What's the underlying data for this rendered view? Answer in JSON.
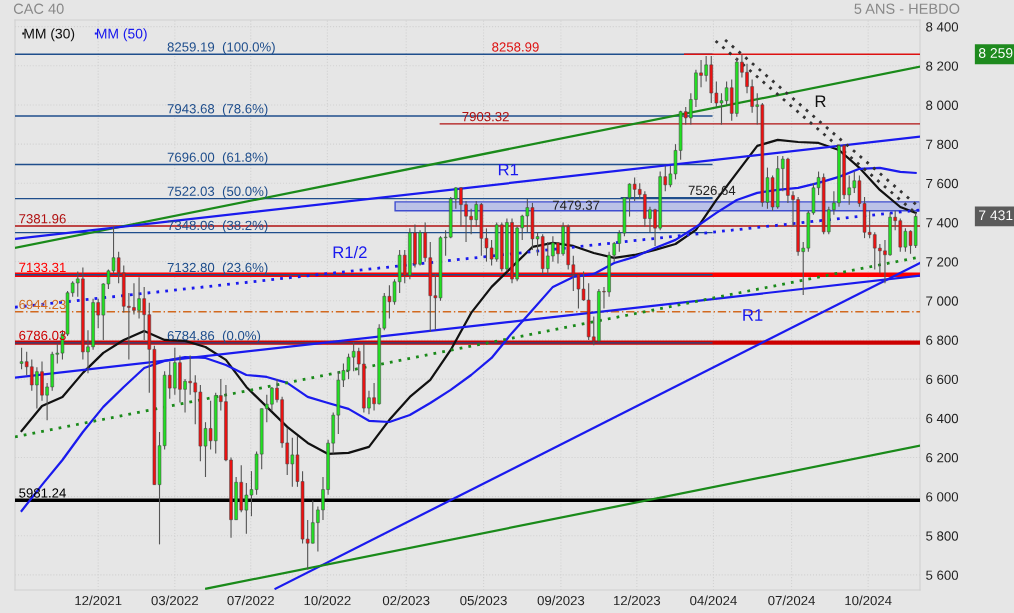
{
  "chart_data": {
    "type": "candlestick",
    "title": "CAC 40",
    "subtitle": "5 ANS - HEBDO",
    "x": [
      "2021-08-30",
      "2021-09-06",
      "2021-09-13",
      "2021-09-20",
      "2021-09-27",
      "2021-10-04",
      "2021-10-11",
      "2021-10-18",
      "2021-10-25",
      "2021-11-01",
      "2021-11-08",
      "2021-11-15",
      "2021-11-22",
      "2021-11-29",
      "2021-12-06",
      "2021-12-13",
      "2021-12-20",
      "2021-12-27",
      "2022-01-03",
      "2022-01-10",
      "2022-01-17",
      "2022-01-24",
      "2022-01-31",
      "2022-02-07",
      "2022-02-14",
      "2022-02-21",
      "2022-02-28",
      "2022-03-07",
      "2022-03-14",
      "2022-03-21",
      "2022-03-28",
      "2022-04-04",
      "2022-04-11",
      "2022-04-18",
      "2022-04-25",
      "2022-05-02",
      "2022-05-09",
      "2022-05-16",
      "2022-05-23",
      "2022-05-30",
      "2022-06-06",
      "2022-06-13",
      "2022-06-20",
      "2022-06-27",
      "2022-07-04",
      "2022-07-11",
      "2022-07-18",
      "2022-07-25",
      "2022-08-01",
      "2022-08-08",
      "2022-08-15",
      "2022-08-22",
      "2022-08-29",
      "2022-09-05",
      "2022-09-12",
      "2022-09-19",
      "2022-09-26",
      "2022-10-03",
      "2022-10-10",
      "2022-10-17",
      "2022-10-24",
      "2022-10-31",
      "2022-11-07",
      "2022-11-14",
      "2022-11-21",
      "2022-11-28",
      "2022-12-05",
      "2022-12-12",
      "2022-12-19",
      "2022-12-26",
      "2023-01-02",
      "2023-01-09",
      "2023-01-16",
      "2023-01-23",
      "2023-01-30",
      "2023-02-06",
      "2023-02-13",
      "2023-02-20",
      "2023-02-27",
      "2023-03-06",
      "2023-03-13",
      "2023-03-20",
      "2023-03-27",
      "2023-04-03",
      "2023-04-10",
      "2023-04-17",
      "2023-04-24",
      "2023-05-01",
      "2023-05-08",
      "2023-05-15",
      "2023-05-22",
      "2023-05-29",
      "2023-06-05",
      "2023-06-12",
      "2023-06-19",
      "2023-06-26",
      "2023-07-03",
      "2023-07-10",
      "2023-07-17",
      "2023-07-24",
      "2023-07-31",
      "2023-08-07",
      "2023-08-14",
      "2023-08-21",
      "2023-08-28",
      "2023-09-04",
      "2023-09-11",
      "2023-09-18",
      "2023-09-25",
      "2023-10-02",
      "2023-10-09",
      "2023-10-16",
      "2023-10-23",
      "2023-10-30",
      "2023-11-06",
      "2023-11-13",
      "2023-11-20",
      "2023-11-27",
      "2023-12-04",
      "2023-12-11",
      "2023-12-18",
      "2023-12-25",
      "2024-01-01",
      "2024-01-08",
      "2024-01-15",
      "2024-01-22",
      "2024-01-29",
      "2024-02-05",
      "2024-02-12",
      "2024-02-19",
      "2024-02-26",
      "2024-03-04",
      "2024-03-11",
      "2024-03-18",
      "2024-03-25",
      "2024-04-01",
      "2024-04-08",
      "2024-04-15",
      "2024-04-22",
      "2024-04-29",
      "2024-05-06",
      "2024-05-13",
      "2024-05-20",
      "2024-05-27",
      "2024-06-03",
      "2024-06-10",
      "2024-06-17",
      "2024-06-24",
      "2024-07-01",
      "2024-07-08",
      "2024-07-15",
      "2024-07-22",
      "2024-07-29",
      "2024-08-05",
      "2024-08-12",
      "2024-08-19",
      "2024-08-26",
      "2024-09-02",
      "2024-09-09",
      "2024-09-16",
      "2024-09-23",
      "2024-09-30",
      "2024-10-07",
      "2024-10-14",
      "2024-10-21",
      "2024-10-28",
      "2024-11-04",
      "2024-11-11",
      "2024-11-18",
      "2024-11-25",
      "2024-12-02",
      "2024-12-09",
      "2024-12-16",
      "2024-12-23",
      "2024-12-30",
      "2025-01-06"
    ],
    "ohlc": [
      [
        6680,
        6760,
        6650,
        6689
      ],
      [
        6689,
        6740,
        6620,
        6663
      ],
      [
        6663,
        6700,
        6540,
        6570
      ],
      [
        6570,
        6660,
        6450,
        6638
      ],
      [
        6638,
        6690,
        6490,
        6518
      ],
      [
        6518,
        6580,
        6390,
        6560
      ],
      [
        6560,
        6740,
        6540,
        6727
      ],
      [
        6727,
        6780,
        6680,
        6733
      ],
      [
        6733,
        6850,
        6700,
        6830
      ],
      [
        6830,
        7050,
        6820,
        7041
      ],
      [
        7041,
        7100,
        7020,
        7091
      ],
      [
        7091,
        7150,
        7020,
        7112
      ],
      [
        7112,
        7170,
        6700,
        6739
      ],
      [
        6739,
        6850,
        6630,
        6765
      ],
      [
        6765,
        7010,
        6750,
        6991
      ],
      [
        6991,
        7010,
        6860,
        6927
      ],
      [
        6927,
        7090,
        6800,
        7086
      ],
      [
        7086,
        7160,
        7060,
        7153
      ],
      [
        7153,
        7380,
        7140,
        7220
      ],
      [
        7220,
        7250,
        7090,
        7143
      ],
      [
        7143,
        7180,
        6940,
        6972
      ],
      [
        6972,
        7040,
        6700,
        6966
      ],
      [
        6966,
        7090,
        6930,
        6951
      ],
      [
        6951,
        7120,
        6910,
        7011
      ],
      [
        7011,
        7070,
        6800,
        6929
      ],
      [
        6929,
        6990,
        6530,
        6752
      ],
      [
        6752,
        6770,
        6060,
        6061
      ],
      [
        6061,
        6330,
        5756,
        6260
      ],
      [
        6260,
        6640,
        6240,
        6620
      ],
      [
        6620,
        6690,
        6500,
        6554
      ],
      [
        6554,
        6760,
        6520,
        6684
      ],
      [
        6684,
        6720,
        6480,
        6548
      ],
      [
        6548,
        6600,
        6430,
        6589
      ],
      [
        6589,
        6720,
        6520,
        6581
      ],
      [
        6581,
        6620,
        6370,
        6534
      ],
      [
        6534,
        6570,
        6180,
        6258
      ],
      [
        6258,
        6380,
        6100,
        6348
      ],
      [
        6348,
        6490,
        6240,
        6285
      ],
      [
        6285,
        6530,
        6220,
        6516
      ],
      [
        6516,
        6600,
        6440,
        6485
      ],
      [
        6485,
        6570,
        6180,
        6187
      ],
      [
        6187,
        6200,
        5790,
        5882
      ],
      [
        5882,
        6100,
        5880,
        6073
      ],
      [
        6073,
        6160,
        5920,
        5931
      ],
      [
        5931,
        6070,
        5810,
        6008
      ],
      [
        6008,
        6130,
        5900,
        6036
      ],
      [
        6036,
        6230,
        6010,
        6217
      ],
      [
        6217,
        6450,
        6140,
        6449
      ],
      [
        6449,
        6520,
        6380,
        6472
      ],
      [
        6472,
        6560,
        6440,
        6554
      ],
      [
        6554,
        6600,
        6480,
        6495
      ],
      [
        6495,
        6510,
        6250,
        6274
      ],
      [
        6274,
        6350,
        6110,
        6167
      ],
      [
        6167,
        6300,
        6050,
        6213
      ],
      [
        6213,
        6310,
        6050,
        6077
      ],
      [
        6077,
        6130,
        5760,
        5783
      ],
      [
        5783,
        5880,
        5628,
        5762
      ],
      [
        5762,
        5980,
        5760,
        5867
      ],
      [
        5867,
        5950,
        5720,
        5932
      ],
      [
        5932,
        6100,
        5880,
        6036
      ],
      [
        6036,
        6290,
        6010,
        6273
      ],
      [
        6273,
        6430,
        6220,
        6416
      ],
      [
        6416,
        6640,
        6320,
        6595
      ],
      [
        6595,
        6680,
        6560,
        6644
      ],
      [
        6644,
        6730,
        6600,
        6712
      ],
      [
        6712,
        6790,
        6640,
        6742
      ],
      [
        6742,
        6760,
        6620,
        6677
      ],
      [
        6677,
        6780,
        6430,
        6452
      ],
      [
        6452,
        6540,
        6420,
        6505
      ],
      [
        6505,
        6580,
        6440,
        6474
      ],
      [
        6474,
        6880,
        6470,
        6860
      ],
      [
        6860,
        7040,
        6850,
        7023
      ],
      [
        7023,
        7080,
        6910,
        6995
      ],
      [
        6995,
        7110,
        6980,
        7097
      ],
      [
        7097,
        7260,
        7040,
        7233
      ],
      [
        7233,
        7260,
        7090,
        7130
      ],
      [
        7130,
        7370,
        7110,
        7347
      ],
      [
        7347,
        7390,
        7170,
        7187
      ],
      [
        7187,
        7360,
        7180,
        7348
      ],
      [
        7348,
        7400,
        7200,
        7220
      ],
      [
        7220,
        7300,
        6840,
        7026
      ],
      [
        7026,
        7140,
        6850,
        7015
      ],
      [
        7015,
        7330,
        7000,
        7322
      ],
      [
        7322,
        7360,
        7230,
        7325
      ],
      [
        7325,
        7530,
        7320,
        7520
      ],
      [
        7520,
        7580,
        7470,
        7577
      ],
      [
        7577,
        7580,
        7380,
        7491
      ],
      [
        7491,
        7510,
        7300,
        7432
      ],
      [
        7432,
        7470,
        7340,
        7414
      ],
      [
        7414,
        7510,
        7380,
        7492
      ],
      [
        7492,
        7500,
        7230,
        7319
      ],
      [
        7319,
        7370,
        7200,
        7270
      ],
      [
        7270,
        7310,
        7180,
        7213
      ],
      [
        7213,
        7400,
        7200,
        7388
      ],
      [
        7388,
        7400,
        7150,
        7163
      ],
      [
        7163,
        7420,
        7150,
        7400
      ],
      [
        7400,
        7420,
        7090,
        7111
      ],
      [
        7111,
        7380,
        7100,
        7372
      ],
      [
        7372,
        7440,
        7310,
        7433
      ],
      [
        7433,
        7520,
        7350,
        7476
      ],
      [
        7476,
        7500,
        7260,
        7316
      ],
      [
        7316,
        7350,
        7230,
        7328
      ],
      [
        7328,
        7340,
        7140,
        7164
      ],
      [
        7164,
        7300,
        7140,
        7229
      ],
      [
        7229,
        7330,
        7200,
        7296
      ],
      [
        7296,
        7300,
        7190,
        7240
      ],
      [
        7240,
        7400,
        7230,
        7379
      ],
      [
        7379,
        7390,
        7160,
        7184
      ],
      [
        7184,
        7230,
        7050,
        7135
      ],
      [
        7135,
        7140,
        6960,
        7060
      ],
      [
        7060,
        7150,
        7000,
        7004
      ],
      [
        7004,
        7090,
        6800,
        6816
      ],
      [
        6816,
        6920,
        6773,
        6795
      ],
      [
        6795,
        7060,
        6790,
        7048
      ],
      [
        7048,
        7070,
        6960,
        7045
      ],
      [
        7045,
        7250,
        7020,
        7233
      ],
      [
        7233,
        7300,
        7200,
        7293
      ],
      [
        7293,
        7360,
        7250,
        7346
      ],
      [
        7346,
        7530,
        7330,
        7526
      ],
      [
        7526,
        7600,
        7430,
        7596
      ],
      [
        7596,
        7630,
        7510,
        7569
      ],
      [
        7569,
        7600,
        7520,
        7543
      ],
      [
        7543,
        7560,
        7380,
        7420
      ],
      [
        7420,
        7480,
        7350,
        7465
      ],
      [
        7465,
        7470,
        7280,
        7371
      ],
      [
        7371,
        7660,
        7360,
        7634
      ],
      [
        7634,
        7690,
        7560,
        7592
      ],
      [
        7592,
        7690,
        7580,
        7648
      ],
      [
        7648,
        7800,
        7620,
        7768
      ],
      [
        7768,
        7970,
        7720,
        7966
      ],
      [
        7966,
        7990,
        7900,
        7934
      ],
      [
        7934,
        8060,
        7900,
        8028
      ],
      [
        8028,
        8180,
        7990,
        8164
      ],
      [
        8164,
        8230,
        8090,
        8151
      ],
      [
        8151,
        8250,
        8120,
        8205
      ],
      [
        8205,
        8250,
        8010,
        8061
      ],
      [
        8061,
        8120,
        7990,
        8010
      ],
      [
        8010,
        8060,
        7900,
        8022
      ],
      [
        8022,
        8120,
        8000,
        8088
      ],
      [
        8088,
        8130,
        7920,
        7957
      ],
      [
        7957,
        8240,
        7940,
        8219
      ],
      [
        8219,
        8259,
        8140,
        8167
      ],
      [
        8167,
        8210,
        8060,
        8094
      ],
      [
        8094,
        8130,
        7960,
        7992
      ],
      [
        7992,
        8060,
        7900,
        8001
      ],
      [
        8001,
        8010,
        7480,
        7503
      ],
      [
        7503,
        7680,
        7470,
        7629
      ],
      [
        7629,
        7640,
        7460,
        7479
      ],
      [
        7479,
        7740,
        7470,
        7675
      ],
      [
        7675,
        7740,
        7560,
        7724
      ],
      [
        7724,
        7730,
        7500,
        7538
      ],
      [
        7538,
        7560,
        7380,
        7517
      ],
      [
        7517,
        7530,
        7230,
        7251
      ],
      [
        7251,
        7300,
        7030,
        7269
      ],
      [
        7269,
        7460,
        7250,
        7449
      ],
      [
        7449,
        7600,
        7440,
        7577
      ],
      [
        7577,
        7660,
        7540,
        7630
      ],
      [
        7630,
        7650,
        7340,
        7352
      ],
      [
        7352,
        7480,
        7340,
        7465
      ],
      [
        7465,
        7560,
        7440,
        7500
      ],
      [
        7500,
        7800,
        7480,
        7792
      ],
      [
        7792,
        7800,
        7520,
        7541
      ],
      [
        7541,
        7640,
        7490,
        7577
      ],
      [
        7577,
        7660,
        7550,
        7613
      ],
      [
        7613,
        7640,
        7480,
        7497
      ],
      [
        7497,
        7530,
        7320,
        7350
      ],
      [
        7350,
        7460,
        7320,
        7338
      ],
      [
        7338,
        7350,
        7160,
        7269
      ],
      [
        7269,
        7290,
        7140,
        7255
      ],
      [
        7255,
        7310,
        7090,
        7235
      ],
      [
        7235,
        7450,
        7230,
        7427
      ],
      [
        7427,
        7460,
        7360,
        7409
      ],
      [
        7409,
        7420,
        7250,
        7274
      ],
      [
        7274,
        7370,
        7250,
        7355
      ],
      [
        7355,
        7360,
        7240,
        7282
      ],
      [
        7282,
        7450,
        7270,
        7431
      ]
    ],
    "series": [
      {
        "name": "MM (30)",
        "type": "line",
        "color": "#111111",
        "line_style": "solid",
        "x": [
          "2021-08-30",
          "2021-09-27",
          "2021-10-25",
          "2021-11-22",
          "2021-12-20",
          "2022-01-17",
          "2022-02-14",
          "2022-03-14",
          "2022-04-11",
          "2022-05-09",
          "2022-06-06",
          "2022-07-04",
          "2022-08-01",
          "2022-08-29",
          "2022-09-26",
          "2022-10-24",
          "2022-11-21",
          "2022-12-19",
          "2023-01-16",
          "2023-02-13",
          "2023-03-13",
          "2023-04-10",
          "2023-05-08",
          "2023-06-05",
          "2023-07-03",
          "2023-07-31",
          "2023-08-28",
          "2023-09-25",
          "2023-10-23",
          "2023-11-20",
          "2023-12-18",
          "2024-01-15",
          "2024-02-12",
          "2024-03-11",
          "2024-04-08",
          "2024-05-06",
          "2024-06-03",
          "2024-07-01",
          "2024-07-29",
          "2024-08-26",
          "2024-09-23",
          "2024-10-21",
          "2024-11-18",
          "2024-12-16",
          "2025-01-06"
        ],
        "values": [
          6335,
          6463,
          6509,
          6632,
          6734,
          6800,
          6846,
          6800,
          6795,
          6764,
          6698,
          6560,
          6458,
          6356,
          6274,
          6218,
          6223,
          6254,
          6392,
          6509,
          6596,
          6749,
          6938,
          7071,
          7173,
          7275,
          7296,
          7280,
          7244,
          7219,
          7234,
          7260,
          7290,
          7362,
          7515,
          7653,
          7791,
          7822,
          7811,
          7806,
          7770,
          7679,
          7566,
          7479,
          7449
        ]
      },
      {
        "name": "MM (50)",
        "type": "line",
        "color": "#1a1aee",
        "line_style": "solid",
        "x": [
          "2021-08-30",
          "2021-09-27",
          "2021-10-25",
          "2021-11-22",
          "2021-12-20",
          "2022-01-17",
          "2022-02-14",
          "2022-03-14",
          "2022-04-11",
          "2022-05-09",
          "2022-06-06",
          "2022-07-04",
          "2022-08-01",
          "2022-08-29",
          "2022-09-26",
          "2022-10-24",
          "2022-11-21",
          "2022-12-19",
          "2023-01-16",
          "2023-02-13",
          "2023-03-13",
          "2023-04-10",
          "2023-05-08",
          "2023-06-05",
          "2023-07-03",
          "2023-07-31",
          "2023-08-28",
          "2023-09-25",
          "2023-10-23",
          "2023-11-20",
          "2023-12-18",
          "2024-01-15",
          "2024-02-12",
          "2024-03-11",
          "2024-04-08",
          "2024-05-06",
          "2024-06-03",
          "2024-07-01",
          "2024-07-29",
          "2024-08-26",
          "2024-09-23",
          "2024-10-21",
          "2024-11-18",
          "2024-12-16",
          "2025-01-06"
        ],
        "values": [
          5927,
          6060,
          6187,
          6330,
          6458,
          6560,
          6657,
          6693,
          6713,
          6708,
          6672,
          6621,
          6611,
          6581,
          6509,
          6478,
          6448,
          6387,
          6381,
          6417,
          6478,
          6545,
          6621,
          6708,
          6836,
          6953,
          7071,
          7122,
          7137,
          7193,
          7224,
          7270,
          7311,
          7377,
          7449,
          7515,
          7551,
          7566,
          7577,
          7602,
          7633,
          7674,
          7679,
          7658,
          7653
        ]
      },
      {
        "type": "line",
        "color": "#1a8a1a",
        "line_style": "solid",
        "x": [
          "2021-08-21",
          "2025-01-12"
        ],
        "values": [
          7270,
          8196
        ]
      },
      {
        "type": "line",
        "color": "#1a1aee",
        "line_style": "solid",
        "x": [
          "2021-08-21",
          "2025-01-12"
        ],
        "values": [
          7316,
          7838
        ]
      },
      {
        "type": "line",
        "color": "#1a1aee",
        "line_style": "solid",
        "x": [
          "2021-08-21",
          "2025-01-12"
        ],
        "values": [
          6608,
          7128
        ]
      },
      {
        "type": "line",
        "color": "#1a1aee",
        "line_style": "solid",
        "x": [
          "2022-08-13",
          "2025-01-12"
        ],
        "values": [
          5530,
          7193
        ]
      },
      {
        "type": "line",
        "color": "#1a8a1a",
        "line_style": "solid",
        "x": [
          "2022-05-10",
          "2025-01-12"
        ],
        "values": [
          5530,
          6260
        ]
      },
      {
        "type": "line",
        "color": "#1a1aee",
        "line_style": "dotted",
        "x": [
          "2021-08-21",
          "2025-01-12"
        ],
        "values": [
          6967,
          7464
        ]
      },
      {
        "type": "line",
        "color": "#1a8a1a",
        "line_style": "dotted",
        "x": [
          "2021-08-21",
          "2025-01-12"
        ],
        "values": [
          6305,
          7224
        ]
      },
      {
        "type": "line",
        "color": "#333333",
        "line_style": "dotted",
        "x": [
          "2024-04-07",
          "2025-01-09"
        ],
        "values": [
          8327,
          7438
        ]
      },
      {
        "type": "line",
        "color": "#333333",
        "line_style": "dotted",
        "x": [
          "2024-04-20",
          "2025-01-12"
        ],
        "values": [
          8332,
          7474
        ]
      }
    ],
    "xlim": [
      "2021-08-21",
      "2025-01-12"
    ],
    "xticks": [
      {
        "value": "2021-12-13",
        "label": "12/2021"
      },
      {
        "value": "2022-03-28",
        "label": "03/2022"
      },
      {
        "value": "2022-07-10",
        "label": "07/2022"
      },
      {
        "value": "2022-10-23",
        "label": "10/2022"
      },
      {
        "value": "2023-02-08",
        "label": "02/2023"
      },
      {
        "value": "2023-05-25",
        "label": "05/2023"
      },
      {
        "value": "2023-09-08",
        "label": "09/2023"
      },
      {
        "value": "2023-12-21",
        "label": "12/2023"
      },
      {
        "value": "2024-04-04",
        "label": "04/2024"
      },
      {
        "value": "2024-07-20",
        "label": "07/2024"
      },
      {
        "value": "2024-11-02",
        "label": "10/2024"
      }
    ],
    "ylim": [
      5523,
      8434
    ],
    "yticks": [
      {
        "value": 5600,
        "label": "5 600"
      },
      {
        "value": 5800,
        "label": "5 800"
      },
      {
        "value": 6000,
        "label": "6 000"
      },
      {
        "value": 6200,
        "label": "6 200"
      },
      {
        "value": 6400,
        "label": "6 400"
      },
      {
        "value": 6600,
        "label": "6 600"
      },
      {
        "value": 6800,
        "label": "6 800"
      },
      {
        "value": 7000,
        "label": "7 000"
      },
      {
        "value": 7200,
        "label": "7 200"
      },
      {
        "value": 7400,
        "label": "7 400"
      },
      {
        "value": 7600,
        "label": "7 600"
      },
      {
        "value": 7800,
        "label": "7 800"
      },
      {
        "value": 8000,
        "label": "8 000"
      },
      {
        "value": 8200,
        "label": "8 200"
      },
      {
        "value": 8400,
        "label": "8 400"
      }
    ],
    "ref_lines": [
      {
        "axis": "y",
        "value": 8259.19,
        "label": "8259.19  (100.0%)",
        "color": "#1f4e8c"
      },
      {
        "axis": "y",
        "value": 7943.68,
        "label": "7943.68  (78.6%)",
        "color": "#1f4e8c"
      },
      {
        "axis": "y",
        "value": 7696.0,
        "label": "7696.00  (61.8%)",
        "color": "#1f4e8c"
      },
      {
        "axis": "y",
        "value": 7522.03,
        "label": "7522.03  (50.0%)",
        "color": "#1f4e8c"
      },
      {
        "axis": "y",
        "value": 7348.06,
        "label": "7348.06  (38.2%)",
        "color": "#1f4e8c"
      },
      {
        "axis": "y",
        "value": 7132.8,
        "label": "7132.80  (23.6%)",
        "color": "#1f4e8c"
      },
      {
        "axis": "y",
        "value": 6784.86,
        "label": "6784.86  (0.0%)",
        "color": "#1f4e8c"
      },
      {
        "axis": "y",
        "value": 8258.99,
        "label": "8258.99",
        "color": "#dd1111"
      },
      {
        "axis": "y",
        "value": 7903.32,
        "label": "7903.32",
        "color": "#b01010"
      },
      {
        "axis": "y",
        "value": 7526.64,
        "label": "7526.64",
        "color": "#1f4e8c"
      },
      {
        "axis": "y",
        "value": 7381.96,
        "label": "7381.96",
        "color": "#b01010"
      },
      {
        "axis": "y",
        "value": 7133.31,
        "label": "7133.31",
        "color": "#ff0000"
      },
      {
        "axis": "y",
        "value": 6944.23,
        "label": "6944.23",
        "color": "#d2691e",
        "line_style": "dashed"
      },
      {
        "axis": "y",
        "value": 6786.03,
        "label": "6786.03",
        "color": "#cc0000"
      },
      {
        "axis": "y",
        "value": 5981.24,
        "label": "5981.24",
        "color": "#000000"
      }
    ],
    "bands": [
      {
        "axis": "y",
        "from": 7460,
        "to": 7505,
        "label": "7479.37",
        "color": "#b4bce8"
      }
    ],
    "annotations": [
      "R",
      "R1",
      "R1/2",
      "R1",
      "8 259",
      "7 431"
    ],
    "grid": true,
    "legend": "top left"
  }
}
